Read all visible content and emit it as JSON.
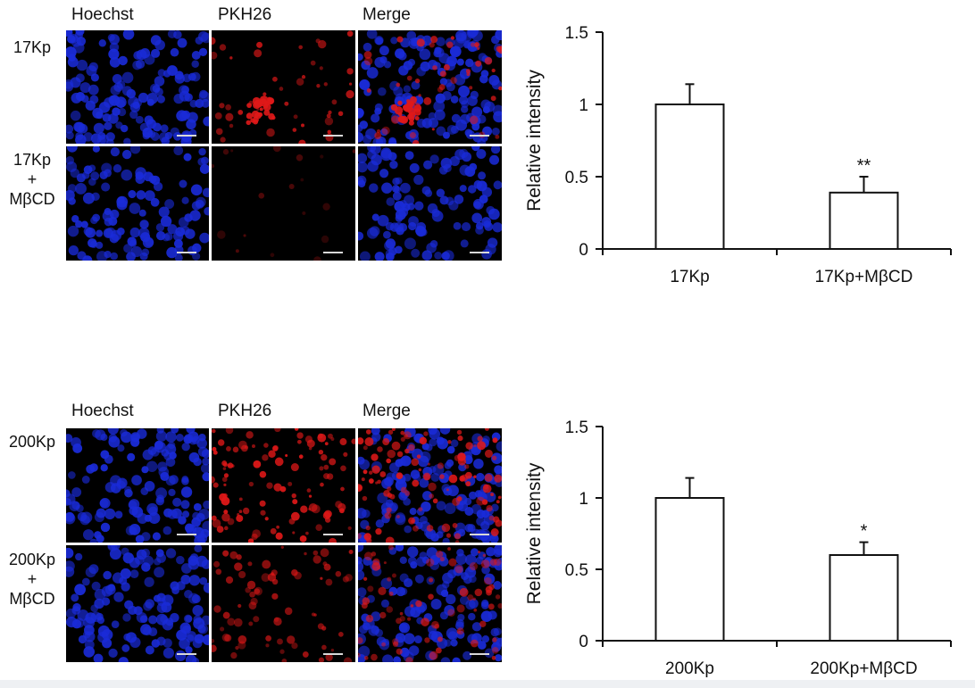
{
  "colors": {
    "hoechst": "#1a2bd8",
    "pkh26": "#e01818",
    "background": "#000000",
    "bar_fill": "#ffffff",
    "axis": "#111111"
  },
  "panels": [
    {
      "columns": [
        "Hoechst",
        "PKH26",
        "Merge"
      ],
      "rows": [
        {
          "lines": [
            "17Kp"
          ]
        },
        {
          "lines": [
            "17Kp",
            "+",
            "MβCD"
          ]
        }
      ]
    },
    {
      "columns": [
        "Hoechst",
        "PKH26",
        "Merge"
      ],
      "rows": [
        {
          "lines": [
            "200Kp"
          ]
        },
        {
          "lines": [
            "200Kp",
            "+",
            "MβCD"
          ]
        }
      ]
    }
  ],
  "chart_data": [
    {
      "type": "bar",
      "categories": [
        "17Kp",
        "17Kp+MβCD"
      ],
      "values": [
        1.0,
        0.39
      ],
      "errors": [
        0.14,
        0.11
      ],
      "significance": [
        "",
        "**"
      ],
      "xlabel": "",
      "ylabel": "Relative intensity",
      "ylim": [
        0,
        1.5
      ],
      "yticks": [
        0,
        0.5,
        1,
        1.5
      ],
      "ytick_labels": [
        "0",
        "0.5",
        "1",
        "1.5"
      ],
      "grid": false
    },
    {
      "type": "bar",
      "categories": [
        "200Kp",
        "200Kp+MβCD"
      ],
      "values": [
        1.0,
        0.6
      ],
      "errors": [
        0.14,
        0.09
      ],
      "significance": [
        "",
        "*"
      ],
      "xlabel": "",
      "ylabel": "Relative intensity",
      "ylim": [
        0,
        1.5
      ],
      "yticks": [
        0,
        0.5,
        1,
        1.5
      ],
      "ytick_labels": [
        "0",
        "0.5",
        "1",
        "1.5"
      ],
      "grid": false
    }
  ]
}
